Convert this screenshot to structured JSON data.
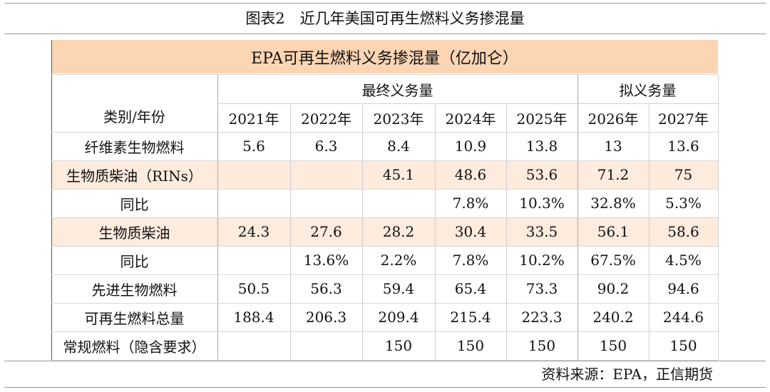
{
  "header": {
    "title": "图表2　近几年美国可再生燃料义务掺混量"
  },
  "table": {
    "title": "EPA可再生燃料义务掺混量（亿加仑）",
    "corner": "类别/年份",
    "groups": [
      "最终义务量",
      "拟义务量"
    ],
    "years": [
      "2021年",
      "2022年",
      "2023年",
      "2024年",
      "2025年",
      "2026年",
      "2027年"
    ],
    "rows": [
      {
        "label": "纤维素生物燃料",
        "cells": [
          "5.6",
          "6.3",
          "8.4",
          "10.9",
          "13.8",
          "13",
          "13.6"
        ]
      },
      {
        "label": "生物质柴油（RINs）",
        "shaded": true,
        "cells": [
          null,
          null,
          "45.1",
          "48.6",
          "53.6",
          "71.2",
          "75"
        ]
      },
      {
        "label": "同比",
        "cells": [
          null,
          null,
          null,
          "7.8%",
          "10.3%",
          "32.8%",
          "5.3%"
        ]
      },
      {
        "label": "生物质柴油",
        "shaded": true,
        "cells": [
          "24.3",
          "27.6",
          "28.2",
          "30.4",
          "33.5",
          "56.1",
          "58.6"
        ]
      },
      {
        "label": "同比",
        "cells": [
          null,
          "13.6%",
          "2.2%",
          "7.8%",
          "10.2%",
          "67.5%",
          "4.5%"
        ]
      },
      {
        "label": "先进生物燃料",
        "cells": [
          "50.5",
          "56.3",
          "59.4",
          "65.4",
          "73.3",
          "90.2",
          "94.6"
        ]
      },
      {
        "label": "可再生燃料总量",
        "cells": [
          "188.4",
          "206.3",
          "209.4",
          "215.4",
          "223.3",
          "240.2",
          "244.6"
        ]
      },
      {
        "label": "常规燃料（隐含要求）",
        "cells": [
          null,
          null,
          "150",
          "150",
          "150",
          "150",
          "150"
        ]
      }
    ]
  },
  "footer": {
    "source": "资料来源：EPA，正信期货"
  }
}
